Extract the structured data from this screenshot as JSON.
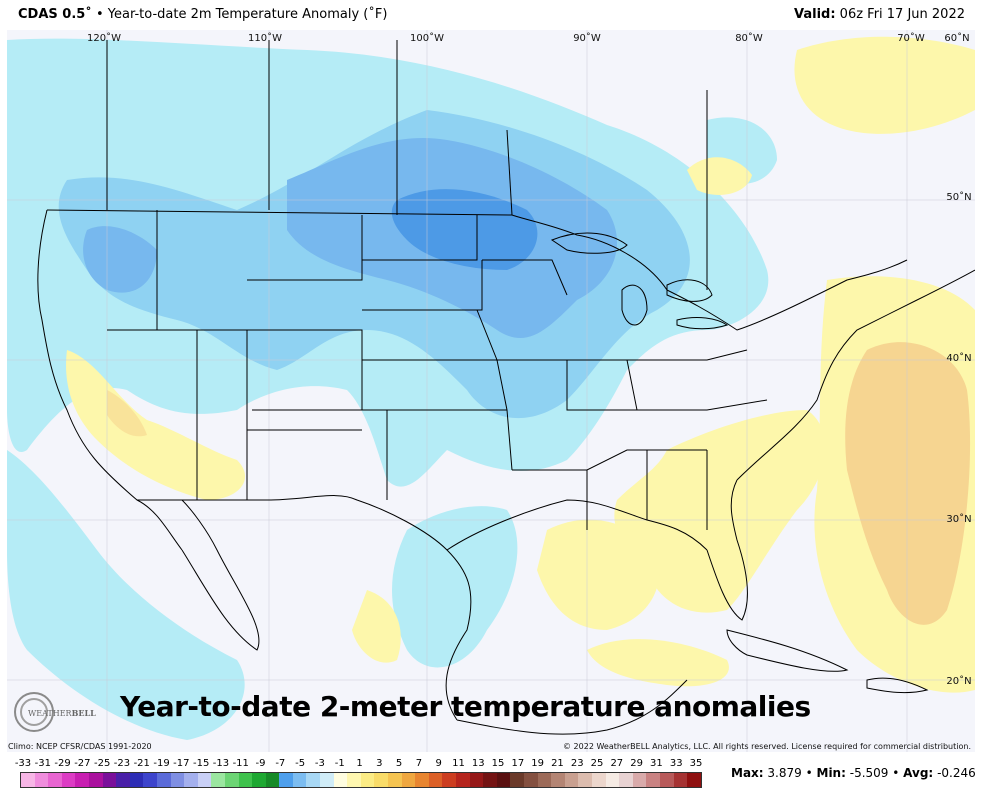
{
  "header": {
    "product": "CDAS 0.5˚",
    "bullet": "•",
    "title": "Year-to-date 2m Temperature Anomaly (˚F)",
    "valid_label": "Valid:",
    "valid_value": "06z Fri 17 Jun 2022"
  },
  "map": {
    "lon_labels": [
      "120˚W",
      "110˚W",
      "100˚W",
      "90˚W",
      "80˚W",
      "70˚W",
      "60˚N"
    ],
    "lat_labels": [
      "50˚N",
      "40˚N",
      "30˚N",
      "20˚N"
    ],
    "overlay_title": "Year-to-date 2-meter temperature anomalies",
    "colors": {
      "background": "#f4f5fb",
      "cool_light": "#b5ecf6",
      "cool_medium": "#8fd2f2",
      "cool_strong": "#77b8ee",
      "cool_deep": "#4d9ae6",
      "warm_light": "#fdf7ab",
      "warm_medium": "#f9e39a",
      "warm_strong": "#f6d591",
      "outline": "#000000"
    }
  },
  "logo": {
    "name_part1": "WEATHER",
    "name_part2": "BELL"
  },
  "footer": {
    "climo": "Climo: NCEP CFSR/CDAS 1991-2020",
    "copyright": "© 2022 WeatherBELL Analytics, LLC. All rights reserved. License required for commercial distribution."
  },
  "legend": {
    "tick_labels": [
      "-33",
      "-31",
      "-29",
      "-27",
      "-25",
      "-23",
      "-21",
      "-19",
      "-17",
      "-15",
      "-13",
      "-11",
      "-9",
      "-7",
      "-5",
      "-3",
      "-1",
      "1",
      "3",
      "5",
      "7",
      "9",
      "11",
      "13",
      "15",
      "17",
      "19",
      "21",
      "23",
      "25",
      "27",
      "29",
      "31",
      "33",
      "35"
    ],
    "colors": [
      "#f7b6e6",
      "#f08ddd",
      "#e865d1",
      "#dc3cc4",
      "#c81eb1",
      "#aa109e",
      "#7a0f9a",
      "#4a1fa8",
      "#2d2db5",
      "#3d44cc",
      "#5b6bd9",
      "#7f8fe3",
      "#a4b0ee",
      "#c9d0f6",
      "#9be6a0",
      "#6cd474",
      "#3fc24d",
      "#1ea832",
      "#168a27",
      "#4e9fec",
      "#7cbdf1",
      "#a8d8f5",
      "#d0ecf7",
      "#fffde0",
      "#fff7b0",
      "#fcec85",
      "#f9dc69",
      "#f5c452",
      "#efa740",
      "#e88530",
      "#dc6027",
      "#cc3d20",
      "#b5241d",
      "#961818",
      "#741313",
      "#5a1010",
      "#6b3a2a",
      "#845040",
      "#9c6a58",
      "#b48574",
      "#c9a090",
      "#dcbcae",
      "#ecd6cc",
      "#f6ebe4",
      "#e8d2d2",
      "#d9aaaa",
      "#c98282",
      "#b85a5a",
      "#a63333",
      "#8f1010"
    ]
  },
  "stats": {
    "max_label": "Max:",
    "max_value": "3.879",
    "min_label": "Min:",
    "min_value": "-5.509",
    "avg_label": "Avg:",
    "avg_value": "-0.246",
    "separator": "•"
  }
}
